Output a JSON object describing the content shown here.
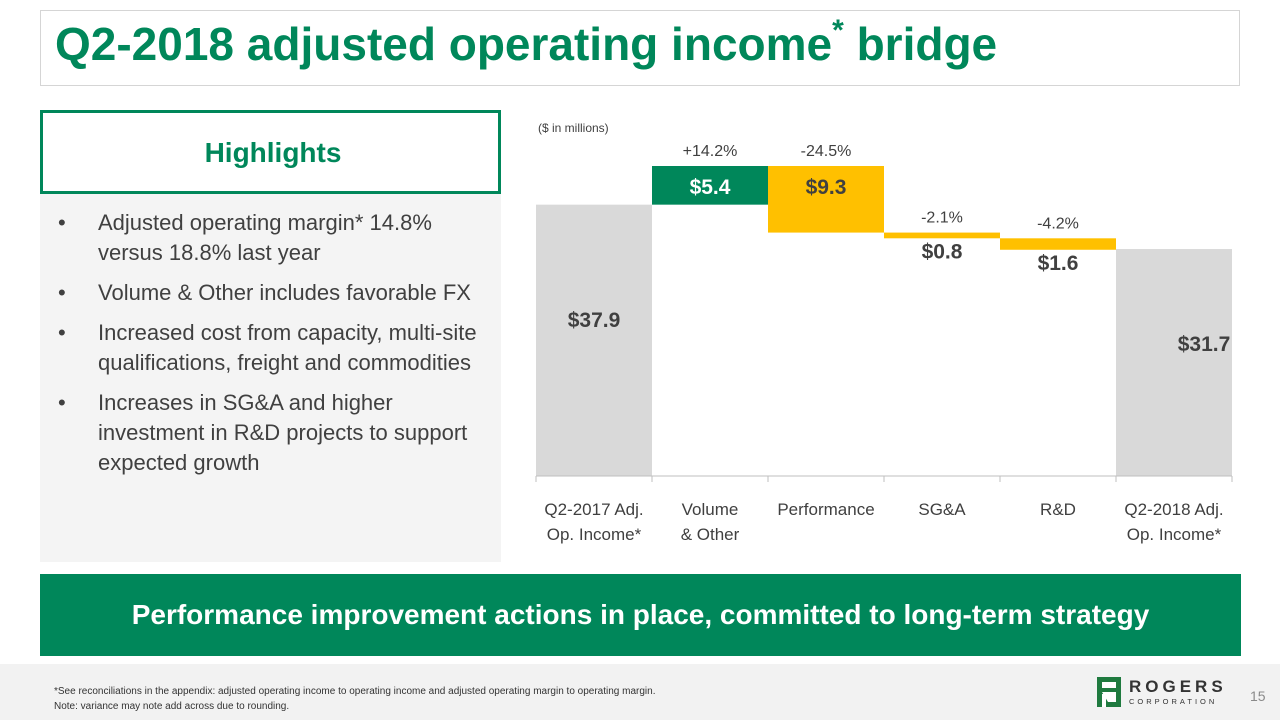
{
  "title": {
    "text": "Q2-2018 adjusted operating income",
    "sup": "*",
    "tail": " bridge"
  },
  "highlights": {
    "title": "Highlights",
    "bullet": "•",
    "items": [
      "Adjusted operating margin* 14.8% versus 18.8% last year",
      "Volume & Other includes favorable FX",
      "Increased cost from capacity, multi-site qualifications, freight and commodities",
      "Increases in SG&A and higher investment in R&D projects to support expected growth"
    ]
  },
  "chart_data": {
    "type": "bar",
    "subtype": "waterfall",
    "unit_note": "($ in millions)",
    "categories": [
      [
        "Q2-2017 Adj.",
        "Op. Income*"
      ],
      [
        "Volume",
        "& Other"
      ],
      [
        "Performance"
      ],
      [
        "SG&A"
      ],
      [
        "R&D"
      ],
      [
        "Q2-2018 Adj.",
        "Op. Income*"
      ]
    ],
    "steps": [
      {
        "kind": "total",
        "value": 37.9,
        "label": "$37.9",
        "pct": "",
        "color": "#d9d9d9"
      },
      {
        "kind": "delta",
        "value": 5.4,
        "label": "$5.4",
        "pct": "+14.2%",
        "color": "#00875a"
      },
      {
        "kind": "delta",
        "value": -9.3,
        "label": "$9.3",
        "pct": "-24.5%",
        "color": "#ffc000"
      },
      {
        "kind": "delta",
        "value": -0.8,
        "label": "$0.8",
        "pct": "-2.1%",
        "color": "#ffc000"
      },
      {
        "kind": "delta",
        "value": -1.6,
        "label": "$1.6",
        "pct": "-4.2%",
        "color": "#ffc000"
      },
      {
        "kind": "total",
        "value": 31.7,
        "label": "$31.7",
        "pct": "",
        "color": "#d9d9d9"
      }
    ],
    "ylim": [
      0,
      43.3
    ]
  },
  "banner": {
    "text": "Performance improvement actions in place, committed to long-term strategy"
  },
  "footer": {
    "note1": "*See reconciliations in the appendix: adjusted operating income to operating income and adjusted operating margin to operating margin.",
    "note2": "Note: variance may note add across due to rounding.",
    "logo_word": "ROGERS",
    "logo_sub": "CORPORATION",
    "page_number": "15"
  },
  "colors": {
    "brand_green": "#00875a",
    "accent_yellow": "#ffc000",
    "total_gray": "#d9d9d9"
  }
}
